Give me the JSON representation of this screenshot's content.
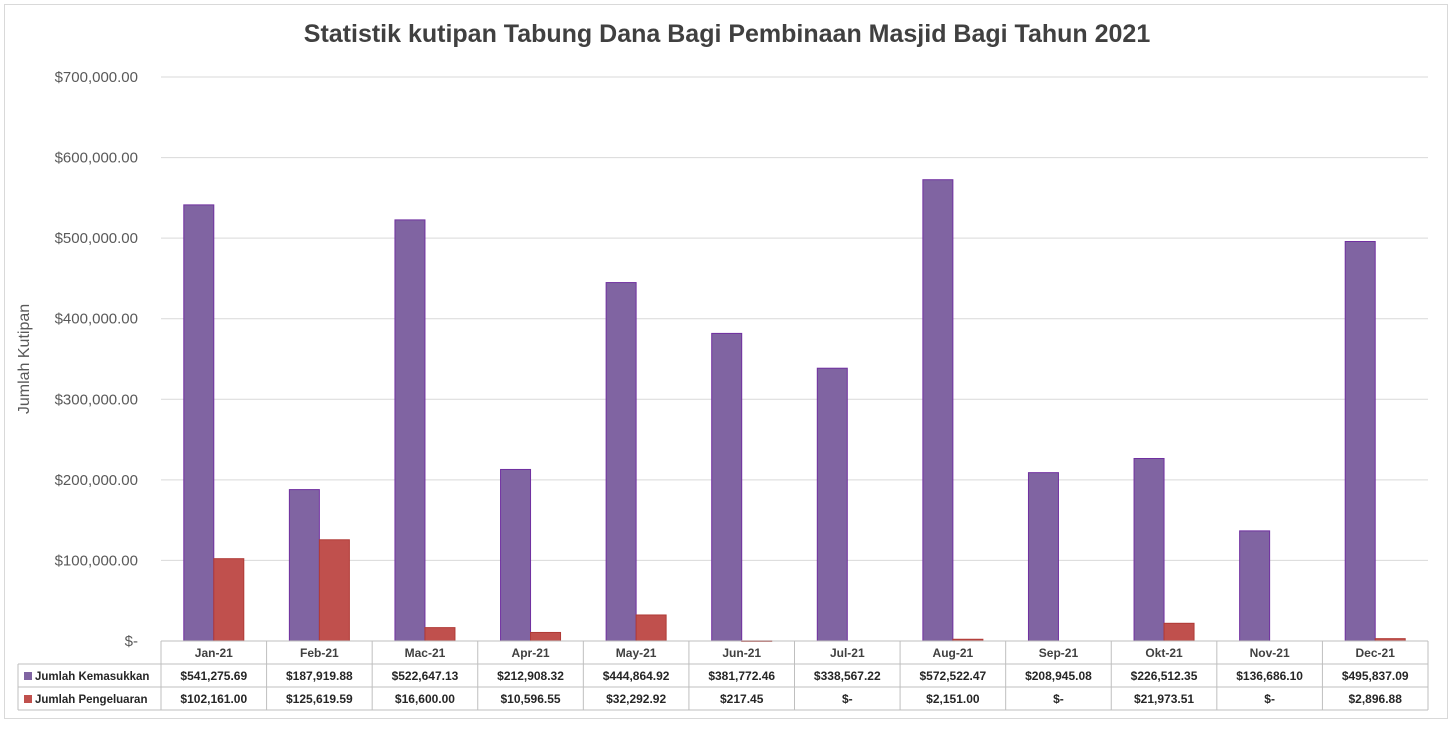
{
  "chart_data": {
    "type": "bar",
    "title": "Statistik kutipan Tabung Dana Bagi Pembinaan Masjid Bagi Tahun 2021",
    "ylabel": "Jumlah Kutipan",
    "xlabel": "",
    "ylim": [
      0,
      700000
    ],
    "yticks": [
      {
        "value": 0,
        "label": "$-"
      },
      {
        "value": 100000,
        "label": "$100,000.00"
      },
      {
        "value": 200000,
        "label": "$200,000.00"
      },
      {
        "value": 300000,
        "label": "$300,000.00"
      },
      {
        "value": 400000,
        "label": "$400,000.00"
      },
      {
        "value": 500000,
        "label": "$500,000.00"
      },
      {
        "value": 600000,
        "label": "$600,000.00"
      },
      {
        "value": 700000,
        "label": "$700,000.00"
      }
    ],
    "grid": true,
    "legend": "data-table",
    "categories": [
      "Jan-21",
      "Feb-21",
      "Mac-21",
      "Apr-21",
      "May-21",
      "Jun-21",
      "Jul-21",
      "Aug-21",
      "Sep-21",
      "Okt-21",
      "Nov-21",
      "Dec-21"
    ],
    "series": [
      {
        "name": "Jumlah Kemasukkan",
        "color": "#8064a2",
        "values": [
          541275.69,
          187919.88,
          522647.13,
          212908.32,
          444864.92,
          381772.46,
          338567.22,
          572522.47,
          208945.08,
          226512.35,
          136686.1,
          495837.09
        ],
        "labels": [
          "$541,275.69",
          "$187,919.88",
          "$522,647.13",
          "$212,908.32",
          "$444,864.92",
          "$381,772.46",
          "$338,567.22",
          "$572,522.47",
          "$208,945.08",
          "$226,512.35",
          "$136,686.10",
          "$495,837.09"
        ]
      },
      {
        "name": "Jumlah Pengeluaran",
        "color": "#c0504d",
        "values": [
          102161.0,
          125619.59,
          16600.0,
          10596.55,
          32292.92,
          217.45,
          0,
          2151.0,
          0,
          21973.51,
          0,
          2896.88
        ],
        "labels": [
          "$102,161.00",
          "$125,619.59",
          "$16,600.00",
          "$10,596.55",
          "$32,292.92",
          "$217.45",
          "$-",
          "$2,151.00",
          "$-",
          "$21,973.51",
          "$-",
          "$2,896.88"
        ]
      }
    ]
  }
}
